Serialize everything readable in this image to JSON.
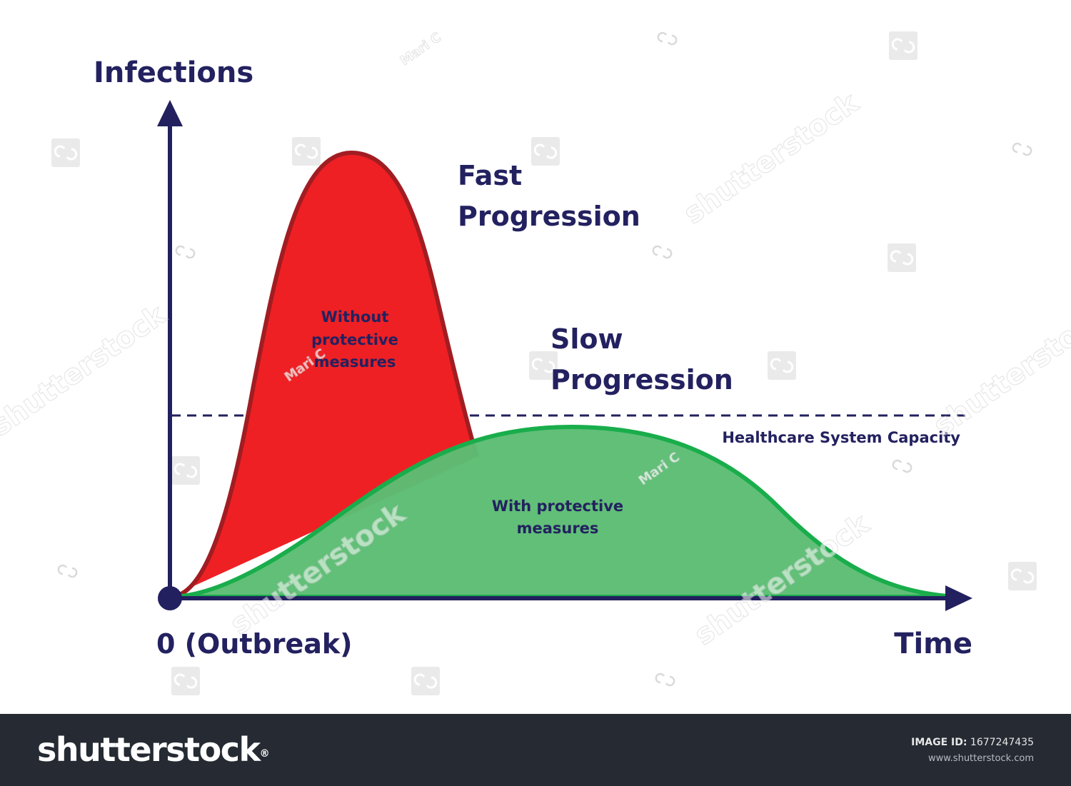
{
  "diagram": {
    "y_axis_label": "Infections",
    "x_axis_label": "Time",
    "origin_label": "0 (Outbreak)",
    "capacity_label": "Healthcare System Capacity",
    "fast": {
      "title_line1": "Fast",
      "title_line2": "Progression",
      "note_line1": "Without",
      "note_line2": "protective",
      "note_line3": "measures",
      "color": "#ee2024",
      "stroke": "#a11d22"
    },
    "slow": {
      "title_line1": "Slow",
      "title_line2": "Progression",
      "note_line1": "With protective",
      "note_line2": "measures",
      "color": "#5cbd74",
      "stroke": "#19ad4b"
    },
    "axis_color": "#22205e",
    "text_color": "#23215f"
  },
  "watermark": {
    "wordmark": "shutterstock",
    "credit": "Mari C"
  },
  "footer": {
    "logo_text": "shutterstock",
    "logo_mark": "®",
    "image_id_label": "IMAGE ID:",
    "image_id": "1677247435",
    "site": "www.shutterstock.com"
  }
}
